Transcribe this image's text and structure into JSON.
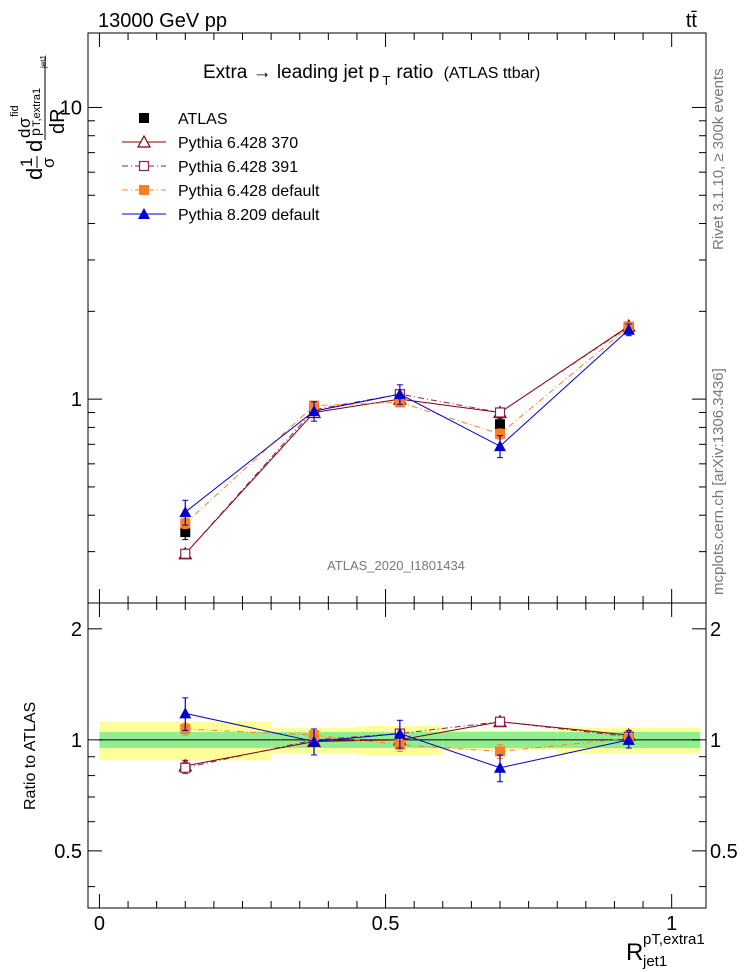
{
  "header": {
    "left": "13000 GeV pp",
    "right": "tt̄"
  },
  "side_labels": {
    "rivet": "Rivet 3.1.10, ≥ 300k events",
    "mcplots": "mcplots.cern.ch [arXiv:1306.3436]"
  },
  "chart_data": [
    {
      "type": "line",
      "title_main": "Extra → leading jet p",
      "title_sub": "T",
      "title_tail": "ratio",
      "title_tag": "(ATLAS ttbar)",
      "analysis_label": "ATLAS_2020_I1801434",
      "ylabel_parts": {
        "d": "d",
        "one": "1",
        "sigma": "σ",
        "sigma_fid": "σ",
        "fid": "fid",
        "pt": "p",
        "extra1": "T,extra1",
        "jet1": "jet1",
        "dR": "dR"
      },
      "xlabel": "R",
      "xlabel_sup": "pT,extra1",
      "xlabel_sub": "jet1",
      "yscale": "log",
      "ylim": [
        0.2,
        18
      ],
      "xlim": [
        -0.02,
        1.06
      ],
      "y_ticks": [
        1,
        10
      ],
      "y_tick_labels": [
        "1",
        "10"
      ],
      "legend_position": "top-left",
      "bins": [
        {
          "lo": 0.0,
          "hi": 0.3,
          "x": 0.15
        },
        {
          "lo": 0.3,
          "hi": 0.45,
          "x": 0.375
        },
        {
          "lo": 0.45,
          "hi": 0.6,
          "x": 0.525
        },
        {
          "lo": 0.6,
          "hi": 0.8,
          "x": 0.7
        },
        {
          "lo": 0.8,
          "hi": 1.05,
          "x": 0.925
        }
      ],
      "series": [
        {
          "name": "ATLAS",
          "color": "#000000",
          "marker": "square-filled",
          "line": "none",
          "x": [
            0.15,
            0.375,
            0.525,
            0.7,
            0.925
          ],
          "values": [
            0.35,
            0.92,
            1.0,
            0.82,
            1.75
          ],
          "err": [
            0.02,
            0.05,
            0.05,
            0.04,
            0.08
          ]
        },
        {
          "name": "Pythia 6.428 370",
          "color": "#800000",
          "marker": "triangle-open",
          "line": "solid",
          "x": [
            0.15,
            0.375,
            0.525,
            0.7,
            0.925
          ],
          "values": [
            0.295,
            0.9,
            1.0,
            0.9,
            1.78
          ],
          "err": [
            0.01,
            0.02,
            0.02,
            0.02,
            0.03
          ]
        },
        {
          "name": "Pythia 6.428 391",
          "color": "#8b2252",
          "marker": "square-open",
          "line": "dashdot",
          "x": [
            0.15,
            0.375,
            0.525,
            0.7,
            0.925
          ],
          "values": [
            0.295,
            0.92,
            1.04,
            0.9,
            1.77
          ],
          "err": [
            0.01,
            0.02,
            0.02,
            0.02,
            0.03
          ]
        },
        {
          "name": "Pythia 6.428 default",
          "color": "#ff7f24",
          "marker": "square-filled",
          "line": "dashdot",
          "x": [
            0.15,
            0.375,
            0.525,
            0.7,
            0.925
          ],
          "values": [
            0.375,
            0.95,
            0.975,
            0.76,
            1.77
          ],
          "err": [
            0.015,
            0.03,
            0.03,
            0.03,
            0.04
          ]
        },
        {
          "name": "Pythia 8.209 default",
          "color": "#0000cd",
          "marker": "triangle-filled",
          "line": "solid",
          "x": [
            0.15,
            0.375,
            0.525,
            0.7,
            0.925
          ],
          "values": [
            0.41,
            0.91,
            1.04,
            0.69,
            1.73
          ],
          "err": [
            0.04,
            0.07,
            0.08,
            0.06,
            0.08
          ]
        }
      ]
    },
    {
      "type": "line",
      "ylabel": "Ratio to ATLAS",
      "ylim": [
        0.35,
        2.35
      ],
      "y_ticks": [
        0.5,
        1,
        2
      ],
      "y_tick_labels": [
        "0.5",
        "1",
        "2"
      ],
      "x_ticks": [
        0,
        0.5,
        1
      ],
      "x_tick_labels": [
        "0",
        "0.5",
        "1"
      ],
      "bands": {
        "green_color": "#90ee90",
        "yellow_color": "#ffff99",
        "green": [
          [
            0.95,
            1.05
          ],
          [
            0.95,
            1.05
          ],
          [
            0.95,
            1.05
          ],
          [
            0.95,
            1.05
          ],
          [
            0.95,
            1.05
          ]
        ],
        "yellow": [
          [
            0.88,
            1.12
          ],
          [
            0.92,
            1.08
          ],
          [
            0.91,
            1.09
          ],
          [
            0.94,
            1.06
          ],
          [
            0.92,
            1.08
          ]
        ]
      },
      "series": [
        {
          "name": "Pythia 6.428 370",
          "color": "#800000",
          "marker": "triangle-open",
          "line": "solid",
          "x": [
            0.15,
            0.375,
            0.525,
            0.7,
            0.925
          ],
          "values": [
            0.85,
            0.99,
            1.0,
            1.12,
            1.03
          ],
          "err": [
            0.03,
            0.03,
            0.03,
            0.03,
            0.03
          ]
        },
        {
          "name": "Pythia 6.428 391",
          "color": "#8b2252",
          "marker": "square-open",
          "line": "dashdot",
          "x": [
            0.15,
            0.375,
            0.525,
            0.7,
            0.925
          ],
          "values": [
            0.84,
            1.0,
            1.04,
            1.12,
            1.02
          ],
          "err": [
            0.03,
            0.03,
            0.03,
            0.03,
            0.03
          ]
        },
        {
          "name": "Pythia 6.428 default",
          "color": "#ff7f24",
          "marker": "square-filled",
          "line": "dashdot",
          "x": [
            0.15,
            0.375,
            0.525,
            0.7,
            0.925
          ],
          "values": [
            1.07,
            1.03,
            0.97,
            0.93,
            1.01
          ],
          "err": [
            0.04,
            0.04,
            0.04,
            0.04,
            0.04
          ]
        },
        {
          "name": "Pythia 8.209 default",
          "color": "#0000cd",
          "marker": "triangle-filled",
          "line": "solid",
          "x": [
            0.15,
            0.375,
            0.525,
            0.7,
            0.925
          ],
          "values": [
            1.18,
            0.99,
            1.04,
            0.84,
            1.0
          ],
          "err": [
            0.12,
            0.08,
            0.09,
            0.07,
            0.05
          ]
        }
      ]
    }
  ]
}
